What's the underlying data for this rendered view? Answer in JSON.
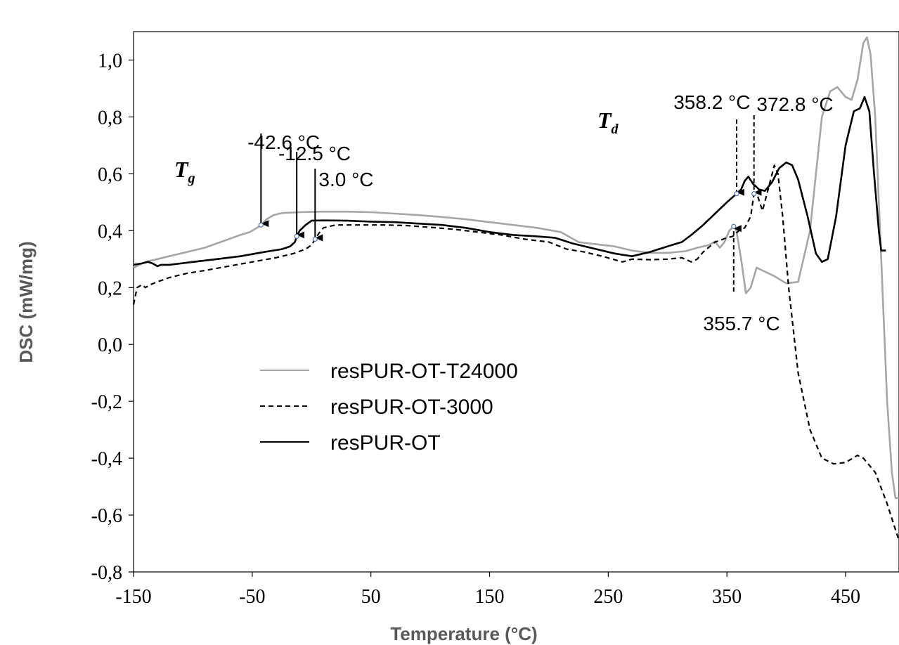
{
  "chart_data": {
    "type": "line",
    "xlabel": "Temperature (°C)",
    "ylabel": "DSC (mW/mg)",
    "xlim": [
      -150,
      495
    ],
    "ylim": [
      -0.8,
      1.1
    ],
    "x_ticks": [
      "-150",
      "-50",
      "50",
      "150",
      "250",
      "350",
      "450"
    ],
    "y_ticks": [
      "1,0",
      "0,8",
      "0,6",
      "0,4",
      "0,2",
      "0,0",
      "-0,2",
      "-0,4",
      "-0,6",
      "-0,8"
    ],
    "series": [
      {
        "name": "resPUR-OT-T24000",
        "color": "#a6a6a6",
        "dash": "solid",
        "points": [
          [
            -150,
            0.27
          ],
          [
            -140,
            0.29
          ],
          [
            -130,
            0.3
          ],
          [
            -120,
            0.31
          ],
          [
            -110,
            0.32
          ],
          [
            -100,
            0.33
          ],
          [
            -90,
            0.34
          ],
          [
            -80,
            0.355
          ],
          [
            -70,
            0.37
          ],
          [
            -60,
            0.385
          ],
          [
            -52,
            0.395
          ],
          [
            -46,
            0.41
          ],
          [
            -42.6,
            0.42
          ],
          [
            -38,
            0.44
          ],
          [
            -32,
            0.455
          ],
          [
            -25,
            0.462
          ],
          [
            -10,
            0.465
          ],
          [
            10,
            0.467
          ],
          [
            30,
            0.467
          ],
          [
            50,
            0.465
          ],
          [
            70,
            0.46
          ],
          [
            90,
            0.455
          ],
          [
            110,
            0.448
          ],
          [
            130,
            0.44
          ],
          [
            150,
            0.43
          ],
          [
            170,
            0.42
          ],
          [
            190,
            0.41
          ],
          [
            210,
            0.395
          ],
          [
            225,
            0.36
          ],
          [
            240,
            0.352
          ],
          [
            255,
            0.345
          ],
          [
            270,
            0.33
          ],
          [
            285,
            0.322
          ],
          [
            300,
            0.322
          ],
          [
            315,
            0.328
          ],
          [
            325,
            0.34
          ],
          [
            335,
            0.35
          ],
          [
            340,
            0.362
          ],
          [
            344,
            0.34
          ],
          [
            348,
            0.36
          ],
          [
            352,
            0.4
          ],
          [
            355.7,
            0.415
          ],
          [
            358,
            0.4
          ],
          [
            362,
            0.3
          ],
          [
            366,
            0.18
          ],
          [
            370,
            0.2
          ],
          [
            375,
            0.27
          ],
          [
            380,
            0.26
          ],
          [
            390,
            0.24
          ],
          [
            400,
            0.215
          ],
          [
            410,
            0.22
          ],
          [
            420,
            0.4
          ],
          [
            430,
            0.8
          ],
          [
            437,
            0.89
          ],
          [
            443,
            0.905
          ],
          [
            450,
            0.87
          ],
          [
            455,
            0.86
          ],
          [
            460,
            0.93
          ],
          [
            465,
            1.06
          ],
          [
            468,
            1.08
          ],
          [
            471,
            1.02
          ],
          [
            475,
            0.8
          ],
          [
            480,
            0.3
          ],
          [
            485,
            -0.2
          ],
          [
            489,
            -0.45
          ],
          [
            492,
            -0.54
          ],
          [
            495,
            -0.54
          ]
        ]
      },
      {
        "name": "resPUR-OT-3000",
        "color": "#000000",
        "dash": "dashed",
        "points": [
          [
            -150,
            0.14
          ],
          [
            -147,
            0.2
          ],
          [
            -143,
            0.21
          ],
          [
            -140,
            0.2
          ],
          [
            -136,
            0.21
          ],
          [
            -130,
            0.22
          ],
          [
            -120,
            0.235
          ],
          [
            -105,
            0.25
          ],
          [
            -90,
            0.26
          ],
          [
            -70,
            0.275
          ],
          [
            -50,
            0.29
          ],
          [
            -30,
            0.305
          ],
          [
            -15,
            0.32
          ],
          [
            -5,
            0.335
          ],
          [
            0,
            0.35
          ],
          [
            3,
            0.37
          ],
          [
            6,
            0.39
          ],
          [
            10,
            0.41
          ],
          [
            20,
            0.42
          ],
          [
            40,
            0.42
          ],
          [
            60,
            0.42
          ],
          [
            80,
            0.418
          ],
          [
            100,
            0.412
          ],
          [
            120,
            0.405
          ],
          [
            140,
            0.395
          ],
          [
            160,
            0.385
          ],
          [
            180,
            0.37
          ],
          [
            200,
            0.36
          ],
          [
            215,
            0.335
          ],
          [
            230,
            0.325
          ],
          [
            245,
            0.31
          ],
          [
            262,
            0.29
          ],
          [
            270,
            0.3
          ],
          [
            285,
            0.298
          ],
          [
            300,
            0.3
          ],
          [
            312,
            0.305
          ],
          [
            320,
            0.29
          ],
          [
            325,
            0.3
          ],
          [
            330,
            0.325
          ],
          [
            340,
            0.36
          ],
          [
            350,
            0.375
          ],
          [
            355,
            0.38
          ],
          [
            360,
            0.4
          ],
          [
            365,
            0.41
          ],
          [
            370,
            0.45
          ],
          [
            372.8,
            0.53
          ],
          [
            376,
            0.52
          ],
          [
            380,
            0.47
          ],
          [
            385,
            0.55
          ],
          [
            390,
            0.63
          ],
          [
            393,
            0.6
          ],
          [
            397,
            0.45
          ],
          [
            402,
            0.2
          ],
          [
            410,
            -0.1
          ],
          [
            420,
            -0.3
          ],
          [
            430,
            -0.4
          ],
          [
            440,
            -0.42
          ],
          [
            450,
            -0.415
          ],
          [
            460,
            -0.39
          ],
          [
            465,
            -0.4
          ],
          [
            475,
            -0.45
          ],
          [
            485,
            -0.56
          ],
          [
            495,
            -0.69
          ]
        ]
      },
      {
        "name": "resPUR-OT",
        "color": "#000000",
        "dash": "solid",
        "points": [
          [
            -150,
            0.28
          ],
          [
            -143,
            0.285
          ],
          [
            -138,
            0.29
          ],
          [
            -134,
            0.285
          ],
          [
            -130,
            0.275
          ],
          [
            -127,
            0.28
          ],
          [
            -120,
            0.28
          ],
          [
            -100,
            0.29
          ],
          [
            -80,
            0.3
          ],
          [
            -60,
            0.31
          ],
          [
            -40,
            0.325
          ],
          [
            -25,
            0.335
          ],
          [
            -18,
            0.345
          ],
          [
            -14,
            0.36
          ],
          [
            -12.5,
            0.38
          ],
          [
            -10,
            0.4
          ],
          [
            -5,
            0.42
          ],
          [
            0,
            0.435
          ],
          [
            10,
            0.436
          ],
          [
            30,
            0.435
          ],
          [
            50,
            0.432
          ],
          [
            70,
            0.43
          ],
          [
            90,
            0.425
          ],
          [
            110,
            0.42
          ],
          [
            130,
            0.41
          ],
          [
            150,
            0.395
          ],
          [
            170,
            0.385
          ],
          [
            190,
            0.38
          ],
          [
            205,
            0.375
          ],
          [
            220,
            0.355
          ],
          [
            240,
            0.335
          ],
          [
            255,
            0.32
          ],
          [
            270,
            0.31
          ],
          [
            285,
            0.325
          ],
          [
            300,
            0.345
          ],
          [
            312,
            0.36
          ],
          [
            320,
            0.385
          ],
          [
            330,
            0.42
          ],
          [
            340,
            0.46
          ],
          [
            350,
            0.5
          ],
          [
            358.2,
            0.53
          ],
          [
            362,
            0.545
          ],
          [
            365,
            0.575
          ],
          [
            368,
            0.59
          ],
          [
            372,
            0.565
          ],
          [
            377,
            0.545
          ],
          [
            382,
            0.54
          ],
          [
            388,
            0.57
          ],
          [
            394,
            0.62
          ],
          [
            400,
            0.64
          ],
          [
            405,
            0.63
          ],
          [
            410,
            0.58
          ],
          [
            418,
            0.45
          ],
          [
            425,
            0.32
          ],
          [
            430,
            0.29
          ],
          [
            435,
            0.3
          ],
          [
            442,
            0.45
          ],
          [
            450,
            0.7
          ],
          [
            457,
            0.82
          ],
          [
            462,
            0.83
          ],
          [
            466,
            0.87
          ],
          [
            470,
            0.82
          ],
          [
            474,
            0.6
          ],
          [
            478,
            0.4
          ],
          [
            480,
            0.33
          ],
          [
            484,
            0.33
          ]
        ]
      }
    ],
    "annotations": [
      {
        "text": "-42.6 °C",
        "x": -42.6,
        "y": 0.42,
        "series": "resPUR-OT-T24000"
      },
      {
        "text": "-12.5 °C",
        "x": -12.5,
        "y": 0.38,
        "series": "resPUR-OT"
      },
      {
        "text": "3.0 °C",
        "x": 3.0,
        "y": 0.37,
        "series": "resPUR-OT-3000"
      },
      {
        "text": "358.2 °C",
        "x": 358.2,
        "y": 0.53,
        "series": "resPUR-OT"
      },
      {
        "text": "372.8 °C",
        "x": 372.8,
        "y": 0.53,
        "series": "resPUR-OT-3000"
      },
      {
        "text": "355.7 °C",
        "x": 355.7,
        "y": 0.415,
        "series": "resPUR-OT-T24000"
      }
    ],
    "symbols": [
      {
        "main": "T",
        "sub": "g"
      },
      {
        "main": "T",
        "sub": "d"
      }
    ],
    "legend": {
      "placement": "center-left",
      "entries": [
        "resPUR-OT-T24000",
        "resPUR-OT-3000",
        "resPUR-OT"
      ]
    },
    "grid": false
  }
}
